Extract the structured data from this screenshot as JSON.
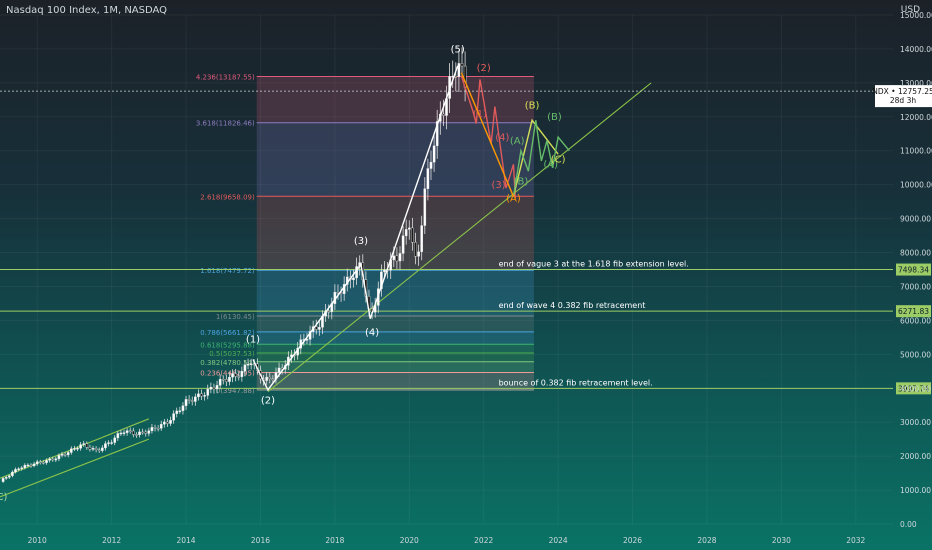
{
  "chart_data": {
    "type": "candlestick",
    "title": "Nasdaq 100 Index, 1M, NASDAQ",
    "currency": "USD",
    "x_ticks": [
      "2010",
      "2012",
      "2014",
      "2016",
      "2018",
      "2020",
      "2022",
      "2024",
      "2026",
      "2028",
      "2030",
      "2032"
    ],
    "y_ticks": [
      "0.00",
      "1000.00",
      "2000.00",
      "3000.00",
      "4000.00",
      "5000.00",
      "6000.00",
      "7000.00",
      "8000.00",
      "9000.00",
      "10000.00",
      "11000.00",
      "12000.00",
      "13000.00",
      "14000.00",
      "15000.00"
    ],
    "ylim": [
      0,
      15000
    ],
    "xlim": [
      2009.0,
      2033.0
    ],
    "last_price": {
      "symbol": "NDX",
      "value": "12757.25",
      "countdown": "28d 3h",
      "price": 12757.25
    },
    "price_path": [
      [
        2009.0,
        1250
      ],
      [
        2009.5,
        1650
      ],
      [
        2010.0,
        1800
      ],
      [
        2010.4,
        1900
      ],
      [
        2010.8,
        2100
      ],
      [
        2011.2,
        2350
      ],
      [
        2011.6,
        2150
      ],
      [
        2012.0,
        2450
      ],
      [
        2012.3,
        2750
      ],
      [
        2012.7,
        2650
      ],
      [
        2013.0,
        2750
      ],
      [
        2013.5,
        3000
      ],
      [
        2014.0,
        3600
      ],
      [
        2014.5,
        3850
      ],
      [
        2015.0,
        4250
      ],
      [
        2015.5,
        4450
      ],
      [
        2015.7,
        4850
      ],
      [
        2016.1,
        4200
      ],
      [
        2016.4,
        4400
      ],
      [
        2016.8,
        4900
      ],
      [
        2017.2,
        5500
      ],
      [
        2017.6,
        5900
      ],
      [
        2018.0,
        6700
      ],
      [
        2018.3,
        7100
      ],
      [
        2018.7,
        7650
      ],
      [
        2018.95,
        6000
      ],
      [
        2019.3,
        7500
      ],
      [
        2019.7,
        7900
      ],
      [
        2020.0,
        8900
      ],
      [
        2020.2,
        7500
      ],
      [
        2020.4,
        9700
      ],
      [
        2020.7,
        11500
      ],
      [
        2020.9,
        12200
      ],
      [
        2021.1,
        13000
      ],
      [
        2021.3,
        13600
      ],
      [
        2021.5,
        13000
      ]
    ],
    "fib_levels": [
      {
        "label": "4.236(13187.55)",
        "price": 13187.55,
        "color": "#e05a7a"
      },
      {
        "label": "3.618(11826.46)",
        "price": 11826.46,
        "color": "#8e7cc3"
      },
      {
        "label": "2.618(9658.09)",
        "price": 9658.09,
        "color": "#e05a5a"
      },
      {
        "label": "1.618(7479.72)",
        "price": 7479.72,
        "color": "#4aa3df"
      },
      {
        "label": "1(6130.45)",
        "price": 6130.45,
        "color": "#7f8c8d"
      },
      {
        "label": "0.786(5661.82)",
        "price": 5661.82,
        "color": "#4aa3df"
      },
      {
        "label": "0.618(5295.88)",
        "price": 5295.88,
        "color": "#3cb371"
      },
      {
        "label": "0.5(5037.53)",
        "price": 5037.53,
        "color": "#4caf50"
      },
      {
        "label": "0.382(4780.54)",
        "price": 4780.54,
        "color": "#81c784"
      },
      {
        "label": "0.236(4462.95)",
        "price": 4462.95,
        "color": "#ef9a9a"
      },
      {
        "label": "0(3947.88)",
        "price": 3947.88,
        "color": "#9e9e9e"
      }
    ],
    "horizontal_levels": [
      {
        "value": "7498.34",
        "price": 7498.34,
        "annotation": "end of vague 3 at the 1.618 fib extension level."
      },
      {
        "value": "6271.83",
        "price": 6271.83,
        "annotation": "end of wave 4     0.382 fib retracement"
      },
      {
        "value": "3997.74",
        "price": 3997.74,
        "annotation": "bounce of 0.382 fib retracement level."
      }
    ],
    "wave_labels": [
      {
        "text": "(C)",
        "x": 2009.0,
        "price": 700,
        "color": "#a5d6a7"
      },
      {
        "text": "(1)",
        "x": 2015.8,
        "price": 5350,
        "color": "#ffffff"
      },
      {
        "text": "(2)",
        "x": 2016.2,
        "price": 3550,
        "color": "#ffffff"
      },
      {
        "text": "(3)",
        "x": 2018.7,
        "price": 8250,
        "color": "#ffffff"
      },
      {
        "text": "(4)",
        "x": 2019.0,
        "price": 5550,
        "color": "#ffffff"
      },
      {
        "text": "(5)",
        "x": 2021.3,
        "price": 13900,
        "color": "#ffffff"
      },
      {
        "text": "(2)",
        "x": 2022.0,
        "price": 13350,
        "color": "#e05a5a"
      },
      {
        "text": "(1)",
        "x": 2021.9,
        "price": 12000,
        "color": "#e05a5a"
      },
      {
        "text": "(4)",
        "x": 2022.5,
        "price": 11300,
        "color": "#e05a5a"
      },
      {
        "text": "(3)",
        "x": 2022.4,
        "price": 9900,
        "color": "#e05a5a"
      },
      {
        "text": "(A)",
        "x": 2022.8,
        "price": 9500,
        "color": "#ff9800"
      },
      {
        "text": "(B)",
        "x": 2023.3,
        "price": 12250,
        "color": "#d4e157"
      },
      {
        "text": "(A)",
        "x": 2022.9,
        "price": 11200,
        "color": "#66bb6a"
      },
      {
        "text": "(B)",
        "x": 2023.0,
        "price": 10000,
        "color": "#66bb6a"
      },
      {
        "text": "(B)",
        "x": 2023.9,
        "price": 11900,
        "color": "#66bb6a"
      },
      {
        "text": "(A)",
        "x": 2023.8,
        "price": 10500,
        "color": "#66bb6a"
      },
      {
        "text": "(C)",
        "x": 2024.0,
        "price": 10650,
        "color": "#d4e157"
      }
    ],
    "wave_paths": [
      {
        "color": "#ffffff",
        "points": [
          [
            2015.8,
            4850
          ],
          [
            2016.2,
            3950
          ],
          [
            2018.7,
            7650
          ],
          [
            2018.95,
            6050
          ],
          [
            2021.3,
            13500
          ]
        ]
      },
      {
        "color": "#e05a5a",
        "points": [
          [
            2021.4,
            13200
          ],
          [
            2021.7,
            12200
          ],
          [
            2021.8,
            11800
          ],
          [
            2021.9,
            13100
          ],
          [
            2022.2,
            11200
          ],
          [
            2022.3,
            12300
          ],
          [
            2022.6,
            9900
          ],
          [
            2022.8,
            10600
          ],
          [
            2022.85,
            9600
          ]
        ]
      },
      {
        "color": "#ff9800",
        "points": [
          [
            2021.4,
            13300
          ],
          [
            2022.8,
            9650
          ]
        ]
      },
      {
        "color": "#d4e157",
        "points": [
          [
            2022.8,
            9650
          ],
          [
            2023.3,
            11900
          ],
          [
            2024.0,
            10900
          ]
        ]
      },
      {
        "color": "#66bb6a",
        "points": [
          [
            2022.8,
            9650
          ],
          [
            2023.0,
            11000
          ],
          [
            2023.2,
            10400
          ],
          [
            2023.4,
            11900
          ],
          [
            2023.55,
            10700
          ],
          [
            2023.7,
            11300
          ],
          [
            2023.85,
            10500
          ],
          [
            2024.0,
            11400
          ],
          [
            2024.3,
            11000
          ]
        ]
      }
    ],
    "trendlines": [
      {
        "color": "#8bc34a",
        "points": [
          [
            2016.2,
            3900
          ],
          [
            2026.5,
            13000
          ]
        ]
      },
      {
        "color": "#8bc34a",
        "points": [
          [
            2009.0,
            1350
          ],
          [
            2013.0,
            3100
          ]
        ]
      },
      {
        "color": "#8bc34a",
        "points": [
          [
            2009.0,
            800
          ],
          [
            2013.0,
            2500
          ]
        ]
      }
    ]
  }
}
